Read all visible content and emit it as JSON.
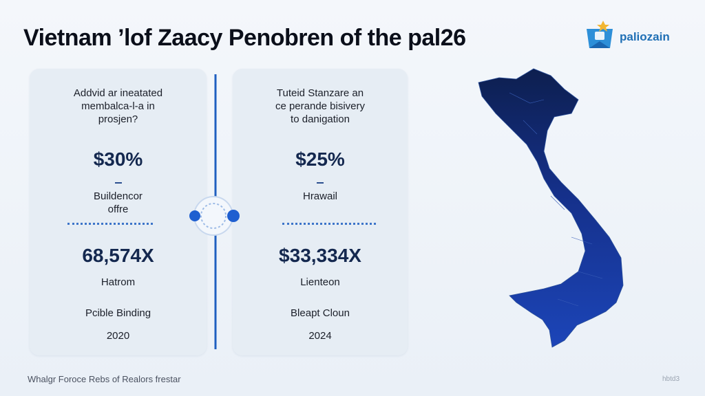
{
  "header": {
    "title": "Vietnam ’lof Zaacy Penobren of the pal26",
    "logo": "paliozain"
  },
  "cards": [
    {
      "question": [
        "Addvid ar ineatated",
        "membalca-l-a in",
        "prosjen?"
      ],
      "stat1": "$30%",
      "label1": [
        "Buildencor",
        "offre"
      ],
      "stat2": "68,574X",
      "label2": "Hatrom",
      "source": "Pcible Binding",
      "year": "2020"
    },
    {
      "question": [
        "Tuteid Stanzare an",
        "ce perande bisivery",
        "to danigation"
      ],
      "stat1": "$25%",
      "label1": [
        "Hrawail"
      ],
      "stat2": "$33,334X",
      "label2": "Lienteon",
      "source": "Bleapt Cloun",
      "year": "2024"
    }
  ],
  "footer": {
    "note": "Whalgr Foroce Rebs of Realors frestar",
    "corner": "hbtd3"
  }
}
